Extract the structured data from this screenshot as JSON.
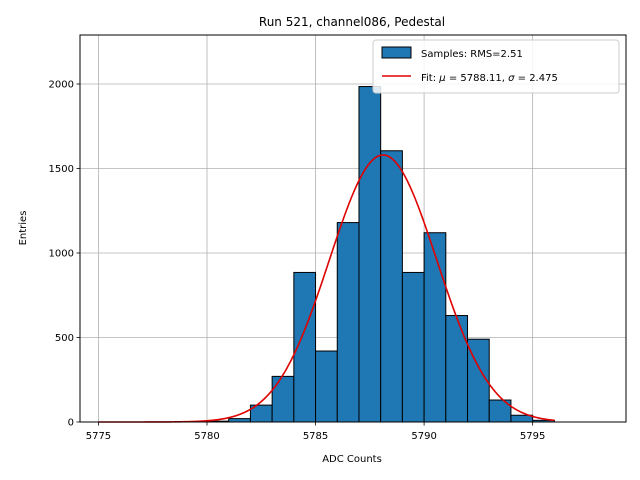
{
  "chart_data": {
    "type": "bar",
    "title": "Run 521, channel086, Pedestal",
    "xlabel": "ADC Counts",
    "ylabel": "Entries",
    "xlim": [
      5774.15,
      5799.3
    ],
    "ylim": [
      0,
      2290
    ],
    "x_ticks": [
      5775,
      5780,
      5785,
      5790,
      5795
    ],
    "y_ticks": [
      0,
      500,
      1000,
      1500,
      2000
    ],
    "grid": true,
    "legend_position": "top-right",
    "histogram": {
      "name": "Samples: RMS=2.51",
      "color": "#1f77b4",
      "edge_color": "#000000",
      "bins": [
        {
          "x0": 5780.0,
          "x1": 5781.0,
          "count": 5
        },
        {
          "x0": 5781.0,
          "x1": 5782.0,
          "count": 20
        },
        {
          "x0": 5782.0,
          "x1": 5783.0,
          "count": 100
        },
        {
          "x0": 5783.0,
          "x1": 5784.0,
          "count": 270
        },
        {
          "x0": 5784.0,
          "x1": 5785.0,
          "count": 885
        },
        {
          "x0": 5785.0,
          "x1": 5786.0,
          "count": 420
        },
        {
          "x0": 5786.0,
          "x1": 5787.0,
          "count": 1180
        },
        {
          "x0": 5787.0,
          "x1": 5788.0,
          "count": 1985
        },
        {
          "x0": 5788.0,
          "x1": 5789.0,
          "count": 1605
        },
        {
          "x0": 5789.0,
          "x1": 5790.0,
          "count": 885
        },
        {
          "x0": 5790.0,
          "x1": 5791.0,
          "count": 1120
        },
        {
          "x0": 5791.0,
          "x1": 5792.0,
          "count": 630
        },
        {
          "x0": 5792.0,
          "x1": 5793.0,
          "count": 490
        },
        {
          "x0": 5793.0,
          "x1": 5794.0,
          "count": 130
        },
        {
          "x0": 5794.0,
          "x1": 5795.0,
          "count": 40
        },
        {
          "x0": 5795.0,
          "x1": 5796.0,
          "count": 10
        }
      ]
    },
    "fit": {
      "name_prefix": "Fit: ",
      "mu_symbol": "μ",
      "mu_text": " = 5788.11, ",
      "sigma_symbol": "σ",
      "sigma_text": " = 2.475",
      "color": "#e00000",
      "mu": 5788.11,
      "sigma": 2.475,
      "amplitude": 1580,
      "x_range": [
        5775,
        5796
      ]
    }
  }
}
